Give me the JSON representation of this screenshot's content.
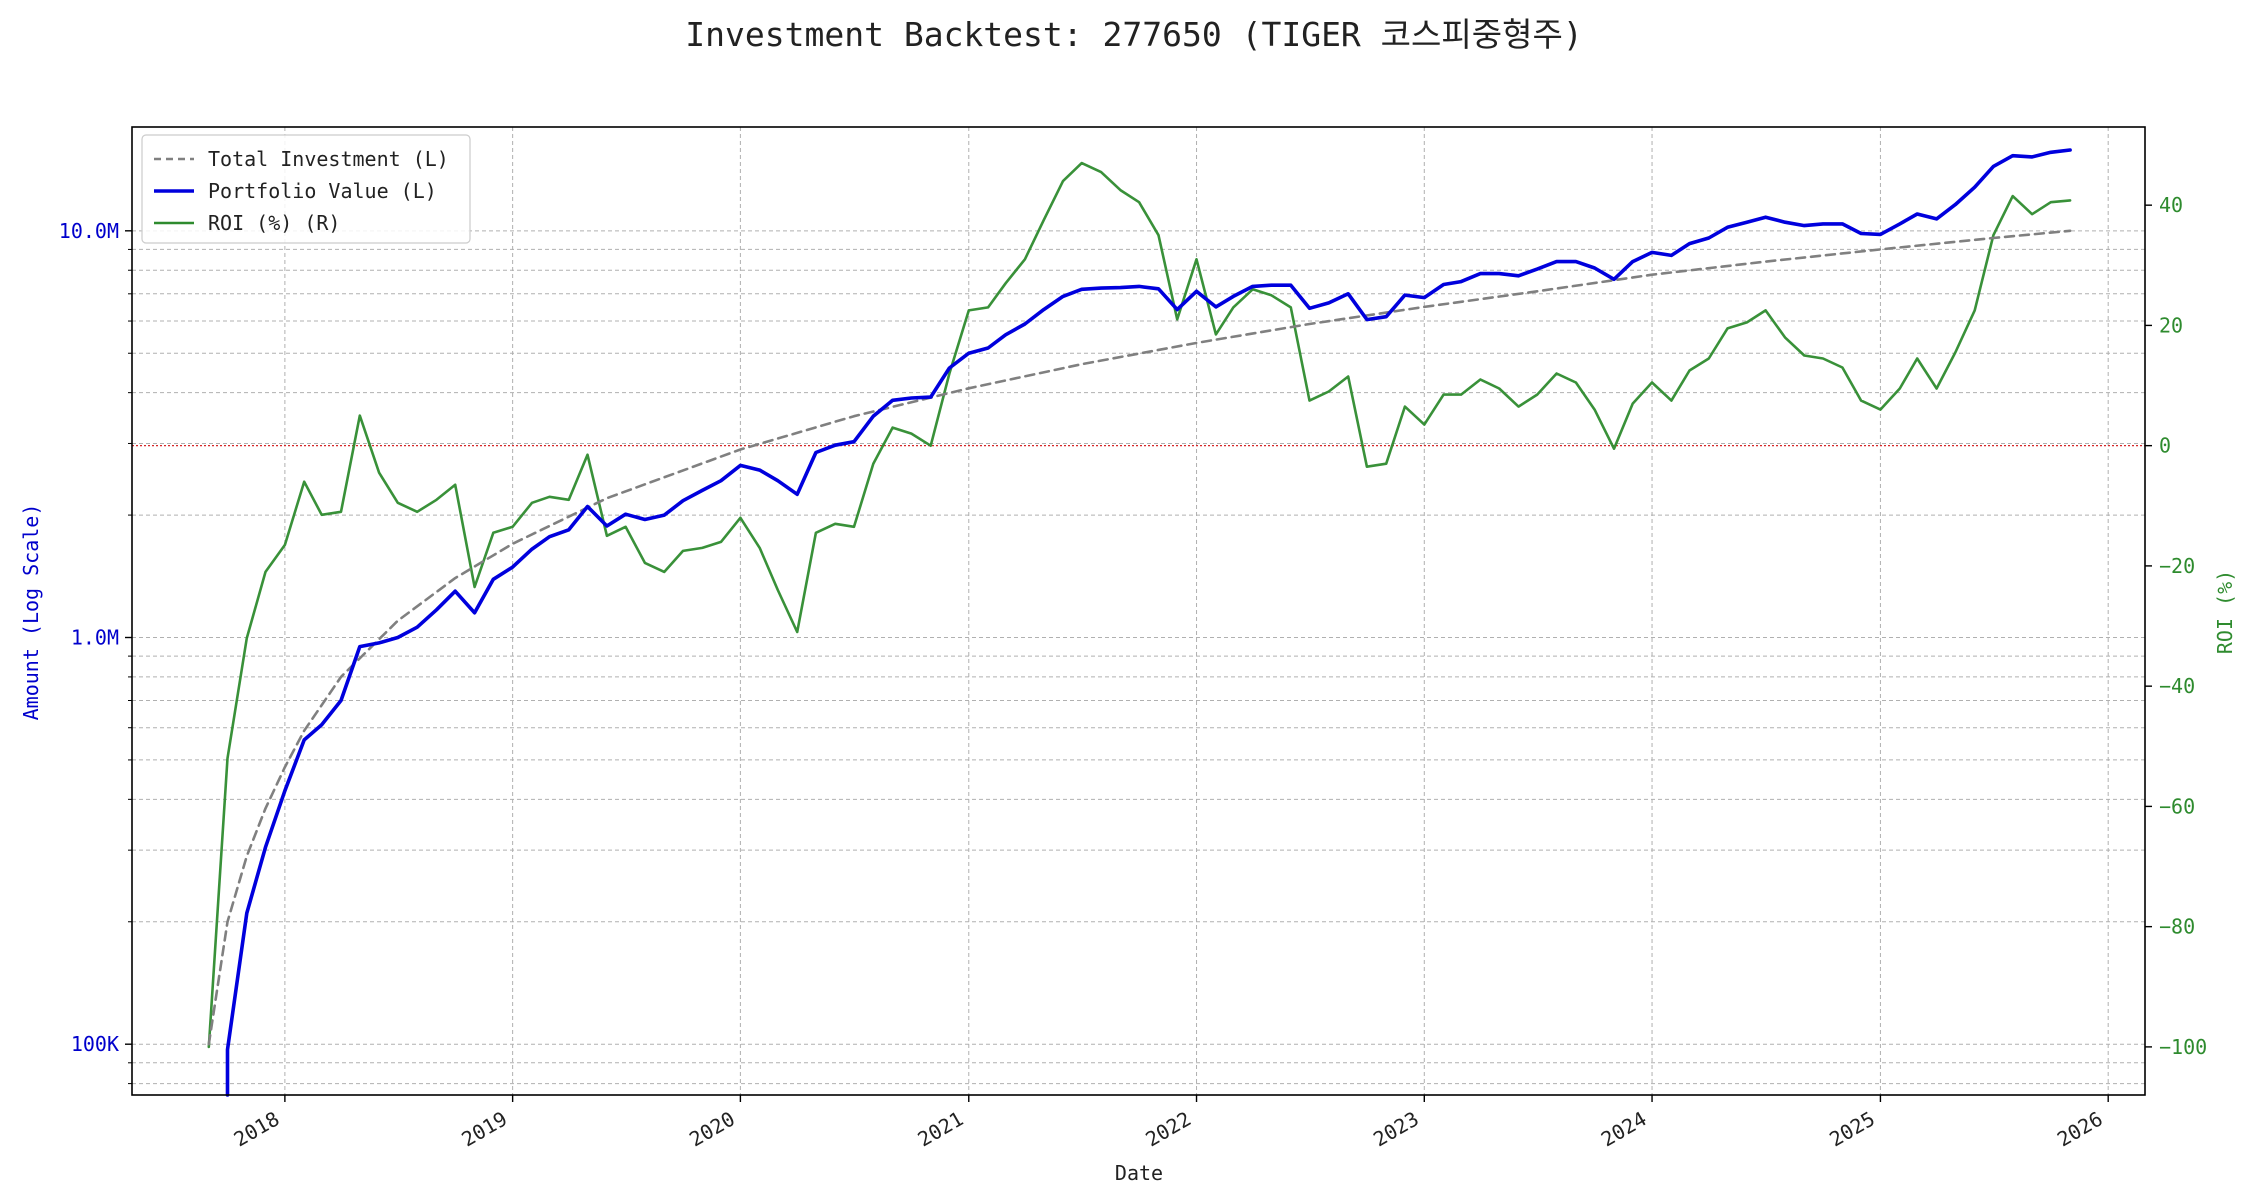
{
  "chart_data": {
    "type": "line",
    "title": "Investment Backtest: 277650 (TIGER 코스피중형주)",
    "xlabel": "Date",
    "ylabel_left": "Amount (Log Scale)",
    "ylabel_right": "ROI (%)",
    "left_scale": "log",
    "left_ylim": [
      75000,
      18000000
    ],
    "right_ylim": [
      -108,
      53
    ],
    "xlim": [
      "2017-05-01",
      "2026-03-01"
    ],
    "grid": true,
    "legend_position": "top-left",
    "x_ticks": [
      {
        "label": "2018",
        "date": "2018-01-01"
      },
      {
        "label": "2019",
        "date": "2019-01-01"
      },
      {
        "label": "2020",
        "date": "2020-01-01"
      },
      {
        "label": "2021",
        "date": "2021-01-01"
      },
      {
        "label": "2022",
        "date": "2022-01-01"
      },
      {
        "label": "2023",
        "date": "2023-01-01"
      },
      {
        "label": "2024",
        "date": "2024-01-01"
      },
      {
        "label": "2025",
        "date": "2025-01-01"
      },
      {
        "label": "2026",
        "date": "2026-01-01"
      }
    ],
    "left_ticks": [
      {
        "label": "100K",
        "value": 100000
      },
      {
        "label": "1.0M",
        "value": 1000000
      },
      {
        "label": "10.0M",
        "value": 10000000
      }
    ],
    "right_ticks": [
      {
        "label": "−100",
        "value": -100
      },
      {
        "label": "−80",
        "value": -80
      },
      {
        "label": "−60",
        "value": -60
      },
      {
        "label": "−40",
        "value": -40
      },
      {
        "label": "−20",
        "value": -20
      },
      {
        "label": "0",
        "value": 0
      },
      {
        "label": "20",
        "value": 20
      },
      {
        "label": "40",
        "value": 40
      }
    ],
    "reference_line": {
      "axis": "right",
      "value": 0,
      "color": "#d62728"
    },
    "colors": {
      "total": "#808080",
      "portfolio": "#0000dd",
      "roi": "#2e8b2e",
      "left_axis_text": "#0000cc",
      "right_axis_text": "#2e8b2e"
    },
    "series": [
      {
        "name": "Total Investment (L)",
        "axis": "left",
        "style": "dashed",
        "points": [
          [
            "2017-09-01",
            100000
          ],
          [
            "2017-10-01",
            200000
          ],
          [
            "2017-11-01",
            290000
          ],
          [
            "2017-12-01",
            380000
          ],
          [
            "2018-01-01",
            480000
          ],
          [
            "2018-02-01",
            590000
          ],
          [
            "2018-04-01",
            800000
          ],
          [
            "2018-07-01",
            1100000
          ],
          [
            "2018-10-01",
            1400000
          ],
          [
            "2019-01-01",
            1700000
          ],
          [
            "2019-06-01",
            2200000
          ],
          [
            "2020-01-01",
            2900000
          ],
          [
            "2020-07-01",
            3500000
          ],
          [
            "2021-01-01",
            4100000
          ],
          [
            "2021-07-01",
            4700000
          ],
          [
            "2022-01-01",
            5300000
          ],
          [
            "2022-07-01",
            5900000
          ],
          [
            "2023-01-01",
            6500000
          ],
          [
            "2023-07-01",
            7100000
          ],
          [
            "2024-01-01",
            7800000
          ],
          [
            "2024-07-01",
            8400000
          ],
          [
            "2025-01-01",
            9000000
          ],
          [
            "2025-07-01",
            9600000
          ],
          [
            "2025-11-01",
            10000000
          ]
        ]
      },
      {
        "name": "Portfolio Value (L)",
        "axis": "left",
        "style": "solid",
        "points": [
          [
            "2017-10-01",
            75000
          ],
          [
            "2017-10-01",
            97000
          ],
          [
            "2017-11-01",
            210000
          ],
          [
            "2017-12-01",
            305000
          ],
          [
            "2018-01-01",
            420000
          ],
          [
            "2018-02-01",
            560000
          ],
          [
            "2018-03-01",
            610000
          ],
          [
            "2018-04-01",
            700000
          ],
          [
            "2018-05-01",
            950000
          ],
          [
            "2018-06-01",
            970000
          ],
          [
            "2018-07-01",
            1000000
          ],
          [
            "2018-08-01",
            1060000
          ],
          [
            "2018-09-01",
            1170000
          ],
          [
            "2018-10-01",
            1300000
          ],
          [
            "2018-11-01",
            1150000
          ],
          [
            "2018-12-01",
            1390000
          ],
          [
            "2019-01-01",
            1490000
          ],
          [
            "2019-02-01",
            1650000
          ],
          [
            "2019-03-01",
            1770000
          ],
          [
            "2019-04-01",
            1840000
          ],
          [
            "2019-05-01",
            2100000
          ],
          [
            "2019-06-01",
            1880000
          ],
          [
            "2019-07-01",
            2010000
          ],
          [
            "2019-08-01",
            1950000
          ],
          [
            "2019-09-01",
            2000000
          ],
          [
            "2019-10-01",
            2170000
          ],
          [
            "2019-11-01",
            2300000
          ],
          [
            "2019-12-01",
            2430000
          ],
          [
            "2020-01-01",
            2650000
          ],
          [
            "2020-02-01",
            2580000
          ],
          [
            "2020-03-01",
            2430000
          ],
          [
            "2020-04-01",
            2250000
          ],
          [
            "2020-05-01",
            2850000
          ],
          [
            "2020-06-01",
            2970000
          ],
          [
            "2020-07-01",
            3030000
          ],
          [
            "2020-08-01",
            3500000
          ],
          [
            "2020-09-01",
            3830000
          ],
          [
            "2020-10-01",
            3880000
          ],
          [
            "2020-11-01",
            3900000
          ],
          [
            "2020-12-01",
            4600000
          ],
          [
            "2021-01-01",
            5000000
          ],
          [
            "2021-02-01",
            5150000
          ],
          [
            "2021-03-01",
            5550000
          ],
          [
            "2021-04-01",
            5900000
          ],
          [
            "2021-05-01",
            6400000
          ],
          [
            "2021-06-01",
            6900000
          ],
          [
            "2021-07-01",
            7180000
          ],
          [
            "2021-08-01",
            7230000
          ],
          [
            "2021-09-01",
            7250000
          ],
          [
            "2021-10-01",
            7300000
          ],
          [
            "2021-11-01",
            7200000
          ],
          [
            "2021-12-01",
            6400000
          ],
          [
            "2022-01-01",
            7100000
          ],
          [
            "2022-02-01",
            6500000
          ],
          [
            "2022-03-01",
            6900000
          ],
          [
            "2022-04-01",
            7300000
          ],
          [
            "2022-05-01",
            7350000
          ],
          [
            "2022-06-01",
            7350000
          ],
          [
            "2022-07-01",
            6450000
          ],
          [
            "2022-08-01",
            6650000
          ],
          [
            "2022-09-01",
            7000000
          ],
          [
            "2022-10-01",
            6050000
          ],
          [
            "2022-11-01",
            6150000
          ],
          [
            "2022-12-01",
            6950000
          ],
          [
            "2023-01-01",
            6850000
          ],
          [
            "2023-02-01",
            7380000
          ],
          [
            "2023-03-01",
            7500000
          ],
          [
            "2023-04-01",
            7850000
          ],
          [
            "2023-05-01",
            7850000
          ],
          [
            "2023-06-01",
            7750000
          ],
          [
            "2023-07-01",
            8050000
          ],
          [
            "2023-08-01",
            8400000
          ],
          [
            "2023-09-01",
            8400000
          ],
          [
            "2023-10-01",
            8100000
          ],
          [
            "2023-11-01",
            7600000
          ],
          [
            "2023-12-01",
            8400000
          ],
          [
            "2024-01-01",
            8850000
          ],
          [
            "2024-02-01",
            8700000
          ],
          [
            "2024-03-01",
            9300000
          ],
          [
            "2024-04-01",
            9600000
          ],
          [
            "2024-05-01",
            10200000
          ],
          [
            "2024-06-01",
            10500000
          ],
          [
            "2024-07-01",
            10800000
          ],
          [
            "2024-08-01",
            10500000
          ],
          [
            "2024-09-01",
            10300000
          ],
          [
            "2024-10-01",
            10400000
          ],
          [
            "2024-11-01",
            10400000
          ],
          [
            "2024-12-01",
            9850000
          ],
          [
            "2025-01-01",
            9800000
          ],
          [
            "2025-02-01",
            10400000
          ],
          [
            "2025-03-01",
            11000000
          ],
          [
            "2025-04-01",
            10700000
          ],
          [
            "2025-05-01",
            11600000
          ],
          [
            "2025-06-01",
            12800000
          ],
          [
            "2025-07-01",
            14400000
          ],
          [
            "2025-08-01",
            15300000
          ],
          [
            "2025-09-01",
            15200000
          ],
          [
            "2025-10-01",
            15600000
          ],
          [
            "2025-11-01",
            15800000
          ]
        ]
      },
      {
        "name": "ROI (%) (R)",
        "axis": "right",
        "style": "solid",
        "points": [
          [
            "2017-09-01",
            -100
          ],
          [
            "2017-10-01",
            -52
          ],
          [
            "2017-11-01",
            -32
          ],
          [
            "2017-12-01",
            -21
          ],
          [
            "2018-01-01",
            -16.5
          ],
          [
            "2018-02-01",
            -6
          ],
          [
            "2018-03-01",
            -11.5
          ],
          [
            "2018-04-01",
            -11
          ],
          [
            "2018-05-01",
            5
          ],
          [
            "2018-06-01",
            -4.5
          ],
          [
            "2018-07-01",
            -9.5
          ],
          [
            "2018-08-01",
            -11
          ],
          [
            "2018-09-01",
            -9
          ],
          [
            "2018-10-01",
            -6.5
          ],
          [
            "2018-11-01",
            -23.5
          ],
          [
            "2018-12-01",
            -14.5
          ],
          [
            "2019-01-01",
            -13.5
          ],
          [
            "2019-02-01",
            -9.5
          ],
          [
            "2019-03-01",
            -8.5
          ],
          [
            "2019-04-01",
            -9
          ],
          [
            "2019-05-01",
            -1.5
          ],
          [
            "2019-06-01",
            -15
          ],
          [
            "2019-07-01",
            -13.5
          ],
          [
            "2019-08-01",
            -19.5
          ],
          [
            "2019-09-01",
            -21
          ],
          [
            "2019-10-01",
            -17.5
          ],
          [
            "2019-11-01",
            -17
          ],
          [
            "2019-12-01",
            -16
          ],
          [
            "2020-01-01",
            -12
          ],
          [
            "2020-02-01",
            -17
          ],
          [
            "2020-03-01",
            -24
          ],
          [
            "2020-04-01",
            -31
          ],
          [
            "2020-05-01",
            -14.5
          ],
          [
            "2020-06-01",
            -13
          ],
          [
            "2020-07-01",
            -13.5
          ],
          [
            "2020-08-01",
            -3
          ],
          [
            "2020-09-01",
            3
          ],
          [
            "2020-10-01",
            2
          ],
          [
            "2020-11-01",
            0
          ],
          [
            "2020-12-01",
            12
          ],
          [
            "2021-01-01",
            22.5
          ],
          [
            "2021-02-01",
            23
          ],
          [
            "2021-03-01",
            27
          ],
          [
            "2021-04-01",
            31
          ],
          [
            "2021-05-01",
            37.5
          ],
          [
            "2021-06-01",
            44
          ],
          [
            "2021-07-01",
            47
          ],
          [
            "2021-08-01",
            45.5
          ],
          [
            "2021-09-01",
            42.5
          ],
          [
            "2021-10-01",
            40.5
          ],
          [
            "2021-11-01",
            35
          ],
          [
            "2021-12-01",
            21
          ],
          [
            "2022-01-01",
            31
          ],
          [
            "2022-02-01",
            18.5
          ],
          [
            "2022-03-01",
            23
          ],
          [
            "2022-04-01",
            26
          ],
          [
            "2022-05-01",
            25
          ],
          [
            "2022-06-01",
            23
          ],
          [
            "2022-07-01",
            7.5
          ],
          [
            "2022-08-01",
            9
          ],
          [
            "2022-09-01",
            11.5
          ],
          [
            "2022-10-01",
            -3.5
          ],
          [
            "2022-11-01",
            -3
          ],
          [
            "2022-12-01",
            6.5
          ],
          [
            "2023-01-01",
            3.5
          ],
          [
            "2023-02-01",
            8.5
          ],
          [
            "2023-03-01",
            8.5
          ],
          [
            "2023-04-01",
            11
          ],
          [
            "2023-05-01",
            9.5
          ],
          [
            "2023-06-01",
            6.5
          ],
          [
            "2023-07-01",
            8.5
          ],
          [
            "2023-08-01",
            12
          ],
          [
            "2023-09-01",
            10.5
          ],
          [
            "2023-10-01",
            6
          ],
          [
            "2023-11-01",
            -0.5
          ],
          [
            "2023-12-01",
            7
          ],
          [
            "2024-01-01",
            10.5
          ],
          [
            "2024-02-01",
            7.5
          ],
          [
            "2024-03-01",
            12.5
          ],
          [
            "2024-04-01",
            14.5
          ],
          [
            "2024-05-01",
            19.5
          ],
          [
            "2024-06-01",
            20.5
          ],
          [
            "2024-07-01",
            22.5
          ],
          [
            "2024-08-01",
            18
          ],
          [
            "2024-09-01",
            15
          ],
          [
            "2024-10-01",
            14.5
          ],
          [
            "2024-11-01",
            13
          ],
          [
            "2024-12-01",
            7.5
          ],
          [
            "2025-01-01",
            6
          ],
          [
            "2025-02-01",
            9.5
          ],
          [
            "2025-03-01",
            14.5
          ],
          [
            "2025-04-01",
            9.5
          ],
          [
            "2025-05-01",
            15.5
          ],
          [
            "2025-06-01",
            22.5
          ],
          [
            "2025-07-01",
            35
          ],
          [
            "2025-08-01",
            41.5
          ],
          [
            "2025-09-01",
            38.5
          ],
          [
            "2025-10-01",
            40.5
          ],
          [
            "2025-11-01",
            40.8
          ]
        ]
      }
    ]
  }
}
